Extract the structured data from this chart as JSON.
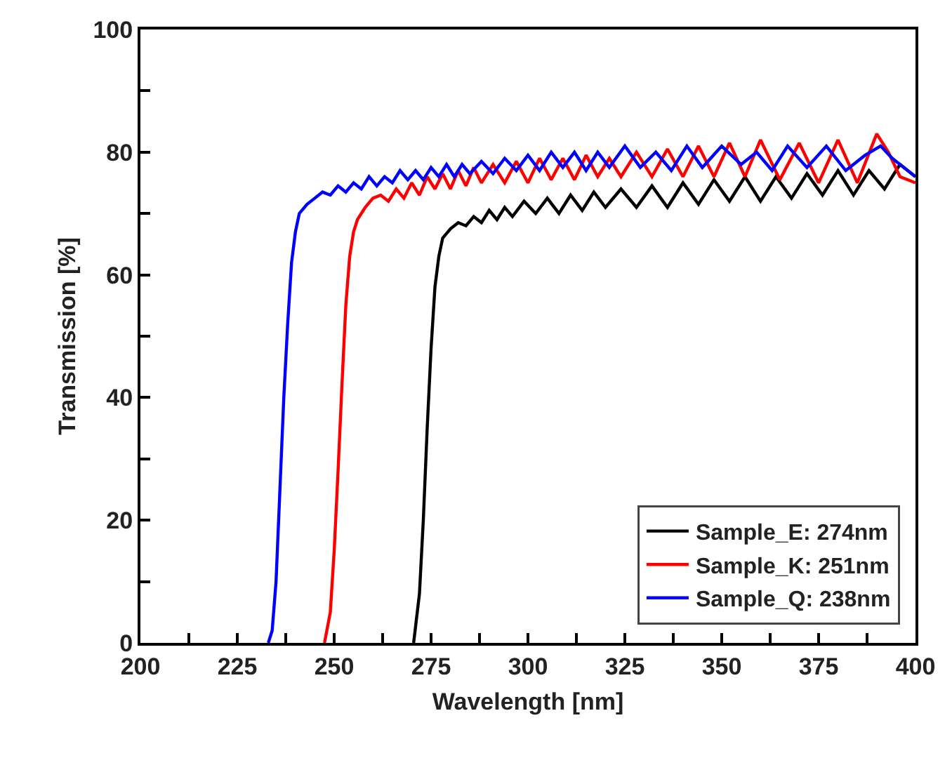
{
  "chart_data": {
    "type": "line",
    "xlabel": "Wavelength [nm]",
    "ylabel": "Transmission [%]",
    "xlim": [
      200,
      400
    ],
    "ylim": [
      0,
      100
    ],
    "xticks": [
      200,
      {
        "value": 212.5,
        "label": null
      },
      225,
      {
        "value": 237.5,
        "label": null
      },
      250,
      {
        "value": 262.5,
        "label": null
      },
      275,
      {
        "value": 287.5,
        "label": null
      },
      300,
      {
        "value": 312.5,
        "label": null
      },
      325,
      {
        "value": 337.5,
        "label": null
      },
      350,
      {
        "value": 362.5,
        "label": null
      },
      375,
      {
        "value": 387.5,
        "label": null
      },
      400
    ],
    "yticks": [
      0,
      {
        "value": 10,
        "label": null
      },
      20,
      {
        "value": 30,
        "label": null
      },
      40,
      {
        "value": 50,
        "label": null
      },
      60,
      {
        "value": 70,
        "label": null
      },
      80,
      {
        "value": 90,
        "label": null
      },
      100
    ],
    "legend": "bottom right",
    "marker": "none",
    "line_style": "solid",
    "series": [
      {
        "name": "Sample_E: 274nm",
        "color": "#000000",
        "x": [
          270.5,
          272,
          273,
          274,
          275,
          276,
          277,
          278,
          280,
          282,
          284,
          286,
          288,
          290,
          292,
          294,
          296,
          299,
          302,
          305,
          308,
          311,
          314,
          317,
          320,
          324,
          328,
          332,
          336,
          340,
          344,
          348,
          352,
          356,
          360,
          364,
          368,
          372,
          376,
          380,
          384,
          388,
          392,
          396,
          400
        ],
        "values": [
          0,
          8,
          20,
          35,
          48,
          58,
          63,
          66,
          67.5,
          68.5,
          68,
          69.5,
          68.5,
          70.5,
          69,
          71,
          69.5,
          72,
          70,
          72.5,
          70,
          73,
          70.5,
          73.5,
          71,
          74,
          71,
          74.5,
          71,
          75,
          71.5,
          75.5,
          72,
          76,
          72,
          76,
          72.5,
          76.5,
          73,
          77,
          73,
          77,
          74,
          78,
          76
        ]
      },
      {
        "name": "Sample_K: 251nm",
        "color": "#ff0000",
        "x": [
          247.5,
          249,
          250,
          251,
          252,
          253,
          254,
          255,
          256,
          258,
          260,
          262,
          264,
          266,
          268,
          270,
          272,
          274,
          276,
          278,
          280,
          282,
          284,
          286,
          288,
          291,
          294,
          297,
          300,
          303,
          306,
          309,
          312,
          315,
          318,
          321,
          324,
          328,
          332,
          336,
          340,
          344,
          348,
          352,
          356,
          360,
          365,
          370,
          375,
          380,
          385,
          390,
          393,
          396,
          400
        ],
        "values": [
          0,
          5,
          15,
          28,
          42,
          55,
          63,
          67,
          69,
          71,
          72.5,
          73,
          72,
          74,
          72.5,
          75,
          73,
          76,
          74,
          76.5,
          74,
          77,
          74.5,
          77.5,
          75,
          78,
          75,
          78.5,
          75,
          79,
          75.5,
          79,
          75.5,
          79.5,
          76,
          79,
          76,
          80,
          76,
          80.5,
          76,
          81,
          76,
          81.5,
          76,
          82,
          75.5,
          81.5,
          75,
          82,
          75,
          83,
          80,
          76,
          75
        ]
      },
      {
        "name": "Sample_Q: 238nm",
        "color": "#0000ff",
        "x": [
          233,
          234,
          235,
          236,
          237,
          238,
          239,
          240,
          241,
          243,
          245,
          247,
          249,
          251,
          253,
          255,
          257,
          259,
          261,
          263,
          265,
          267,
          269,
          271,
          273,
          275,
          277,
          279,
          281,
          283,
          285,
          288,
          291,
          294,
          297,
          300,
          303,
          306,
          309,
          312,
          315,
          318,
          321,
          325,
          329,
          333,
          337,
          341,
          345,
          350,
          355,
          359,
          363,
          367,
          372,
          377,
          382,
          387,
          391,
          394,
          397,
          400
        ],
        "values": [
          0,
          2,
          10,
          25,
          40,
          52,
          62,
          67,
          70,
          71.5,
          72.5,
          73.5,
          73,
          74.5,
          73.5,
          75,
          74,
          76,
          74.5,
          76,
          75,
          77,
          75.5,
          77,
          75.5,
          77.5,
          76,
          78,
          76,
          78,
          76.5,
          78.5,
          76.5,
          79,
          77,
          79.5,
          77,
          80,
          77.5,
          80,
          77,
          80,
          77.5,
          81,
          77.5,
          80,
          77,
          81,
          77.5,
          81,
          78,
          80,
          77,
          81,
          77.5,
          81,
          77,
          79.5,
          81,
          79,
          77.5,
          76
        ]
      }
    ]
  }
}
